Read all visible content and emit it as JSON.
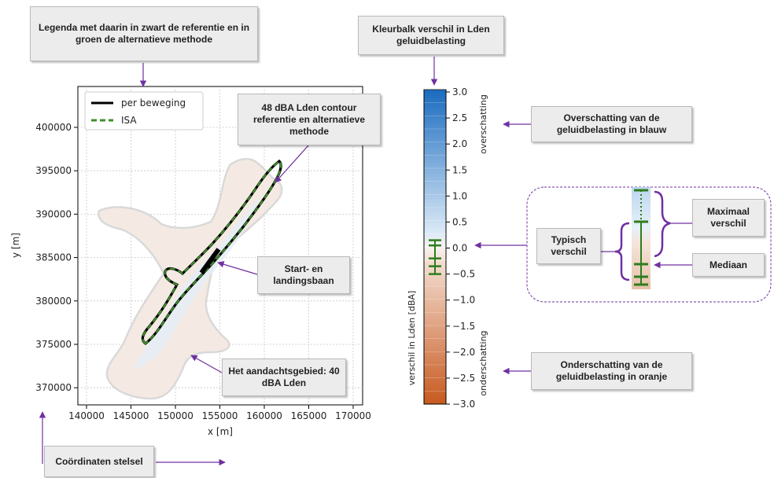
{
  "callouts": {
    "legend_note": "Legenda met daarin in zwart de referentie en in groen de alternatieve methode",
    "colorbar_note": "Kleurbalk verschil in Lden geluidbelasting",
    "contour_note": "48 dBA Lden contour referentie en alternatieve methode",
    "runway_note": "Start- en landingsbaan",
    "area_note": "Het aandachtsgebied: 40 dBA Lden",
    "coords_note": "Coördinaten stelsel",
    "over_note": "Overschatting van de geluidbelasting in blauw",
    "under_note": "Onderschatting van de geluidbelasting in oranje",
    "typical_note": "Typisch verschil",
    "max_note": "Maximaal verschil",
    "median_note": "Mediaan"
  },
  "map": {
    "xlabel": "x [m]",
    "ylabel": "y [m]",
    "x_ticks": [
      "140000",
      "145000",
      "150000",
      "155000",
      "160000",
      "165000",
      "170000"
    ],
    "y_ticks": [
      "400000",
      "395000",
      "390000",
      "385000",
      "380000",
      "375000",
      "370000"
    ],
    "legend": [
      {
        "label": "per beweging",
        "color": "#000000",
        "style": "solid"
      },
      {
        "label": "ISA",
        "color": "#2e7d1e",
        "style": "dashed"
      }
    ]
  },
  "colorbar": {
    "ticks": [
      "3.0",
      "2.5",
      "2.0",
      "1.5",
      "1.0",
      "0.5",
      "0.0",
      "−0.5",
      "−1.0",
      "−1.5",
      "−2.0",
      "−2.5",
      "−3.0"
    ],
    "label": "verschil in Lden [dBA]",
    "top_label": "overschatting",
    "bottom_label": "onderschatting",
    "whisker": {
      "low": -0.5,
      "q1": -0.35,
      "median": -0.2,
      "q3": 0.05,
      "high": 0.15
    }
  },
  "colors": {
    "accent": "#7030a0",
    "green": "#2e7d1e",
    "blue_top": "#1a6bbf",
    "orange_bottom": "#c85a20"
  }
}
